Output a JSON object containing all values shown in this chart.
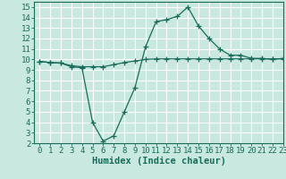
{
  "title": "",
  "xlabel": "Humidex (Indice chaleur)",
  "ylabel": "",
  "bg_color": "#c8e8e0",
  "line_color": "#1a6b5a",
  "grid_color": "#ffffff",
  "xlim": [
    -0.5,
    23
  ],
  "ylim": [
    2,
    15.5
  ],
  "x_ticks": [
    0,
    1,
    2,
    3,
    4,
    5,
    6,
    7,
    8,
    9,
    10,
    11,
    12,
    13,
    14,
    15,
    16,
    17,
    18,
    19,
    20,
    21,
    22,
    23
  ],
  "y_ticks": [
    2,
    3,
    4,
    5,
    6,
    7,
    8,
    9,
    10,
    11,
    12,
    13,
    14,
    15
  ],
  "line1_x": [
    0,
    1,
    2,
    3,
    4,
    5,
    6,
    7,
    8,
    9,
    10,
    11,
    12,
    13,
    14,
    15,
    16,
    17,
    18,
    19,
    20,
    21,
    22,
    23
  ],
  "line1_y": [
    9.8,
    9.7,
    9.65,
    9.4,
    9.3,
    9.3,
    9.3,
    9.5,
    9.7,
    9.85,
    10.0,
    10.05,
    10.05,
    10.05,
    10.05,
    10.05,
    10.05,
    10.05,
    10.05,
    10.05,
    10.05,
    10.05,
    10.05,
    10.05
  ],
  "line2_x": [
    0,
    1,
    2,
    3,
    4,
    5,
    6,
    7,
    8,
    9,
    10,
    11,
    12,
    13,
    14,
    15,
    16,
    17,
    18,
    19,
    20,
    21,
    22,
    23
  ],
  "line2_y": [
    9.8,
    9.7,
    9.65,
    9.3,
    9.2,
    4.0,
    2.2,
    2.7,
    5.0,
    7.3,
    11.2,
    13.6,
    13.8,
    14.1,
    15.0,
    13.2,
    12.0,
    11.0,
    10.4,
    10.4,
    10.1,
    10.1,
    10.0,
    10.1
  ],
  "marker": "+",
  "markersize": 4,
  "linewidth": 0.9,
  "tick_fontsize": 6.5,
  "xlabel_fontsize": 7.5
}
